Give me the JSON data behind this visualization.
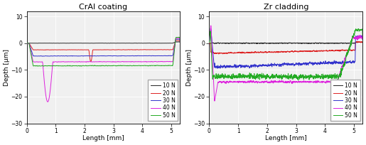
{
  "title_left": "CrAl coating",
  "title_right": "Zr cladding",
  "xlabel": "Length [mm]",
  "ylabel": "Depth [µm]",
  "xlim": [
    0,
    5.3
  ],
  "ylim": [
    -30,
    12
  ],
  "yticks": [
    -30,
    -20,
    -10,
    0,
    10
  ],
  "xticks": [
    0,
    1,
    2,
    3,
    4,
    5
  ],
  "legend_labels": [
    "10 N",
    "20 N",
    "30 N",
    "40 N",
    "50 N"
  ],
  "colors": [
    "#222222",
    "#dd2222",
    "#3333cc",
    "#dd22dd",
    "#22aa22"
  ],
  "linewidth": 0.7,
  "bg_color": "#f0f0f0",
  "grid_color": "#ffffff",
  "figsize": [
    5.15,
    2.04
  ],
  "dpi": 100
}
